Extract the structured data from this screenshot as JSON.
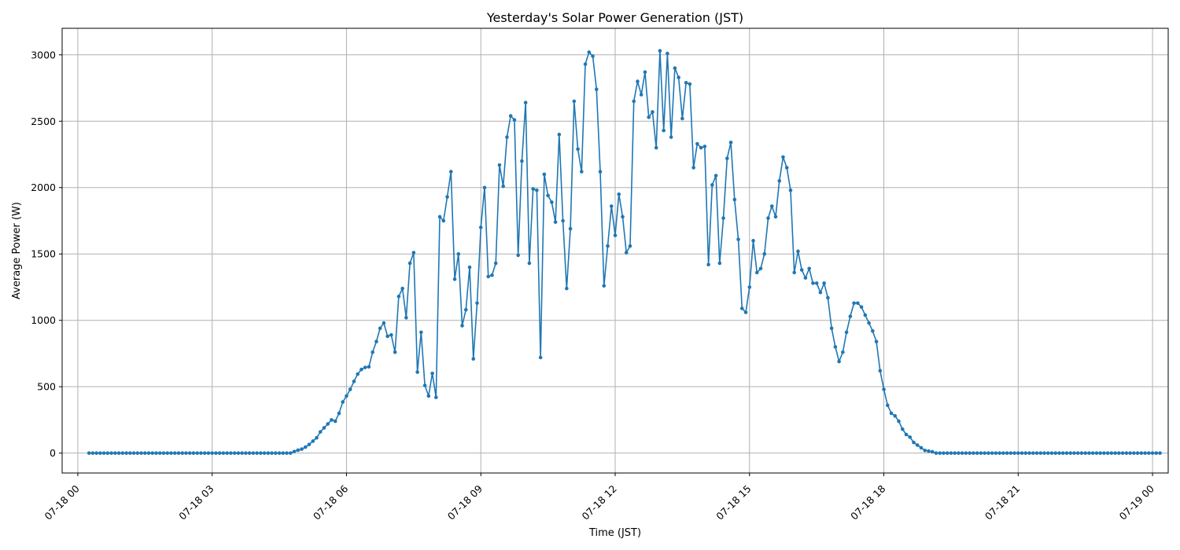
{
  "chart_data": {
    "type": "line",
    "title": "Yesterday's Solar Power Generation (JST)",
    "xlabel": "Time (JST)",
    "ylabel": "Average Power (W)",
    "x_start": "07-18 00:15",
    "x_step_minutes": 5,
    "xlim_hours": [
      -0.35,
      24.35
    ],
    "ylim": [
      -150,
      3200
    ],
    "yticks": [
      0,
      500,
      1000,
      1500,
      2000,
      2500,
      3000
    ],
    "xticks": [
      {
        "hour": 0,
        "label": "07-18 00"
      },
      {
        "hour": 3,
        "label": "07-18 03"
      },
      {
        "hour": 6,
        "label": "07-18 06"
      },
      {
        "hour": 9,
        "label": "07-18 09"
      },
      {
        "hour": 12,
        "label": "07-18 12"
      },
      {
        "hour": 15,
        "label": "07-18 15"
      },
      {
        "hour": 18,
        "label": "07-18 18"
      },
      {
        "hour": 21,
        "label": "07-18 21"
      },
      {
        "hour": 24,
        "label": "07-19 00"
      }
    ],
    "grid": true,
    "color": "#1f77b4",
    "values": [
      0,
      0,
      0,
      0,
      0,
      0,
      0,
      0,
      0,
      0,
      0,
      0,
      0,
      0,
      0,
      0,
      0,
      0,
      0,
      0,
      0,
      0,
      0,
      0,
      0,
      0,
      0,
      0,
      0,
      0,
      0,
      0,
      0,
      0,
      0,
      0,
      0,
      0,
      0,
      0,
      0,
      0,
      0,
      0,
      0,
      0,
      0,
      0,
      0,
      0,
      0,
      0,
      0,
      0,
      0,
      12,
      22,
      30,
      45,
      65,
      90,
      115,
      160,
      190,
      220,
      250,
      240,
      300,
      385,
      430,
      480,
      540,
      595,
      630,
      645,
      650,
      760,
      840,
      940,
      980,
      880,
      890,
      760,
      1180,
      1240,
      1020,
      1430,
      1510,
      610,
      910,
      510,
      430,
      600,
      420,
      1780,
      1750,
      1930,
      2120,
      1310,
      1500,
      960,
      1080,
      1400,
      710,
      1130,
      1700,
      2000,
      1330,
      1340,
      1430,
      2170,
      2010,
      2380,
      2540,
      2510,
      1490,
      2200,
      2640,
      1430,
      1990,
      1980,
      720,
      2100,
      1940,
      1890,
      1740,
      2400,
      1750,
      1240,
      1690,
      2650,
      2290,
      2120,
      2930,
      3020,
      2990,
      2740,
      2120,
      1260,
      1560,
      1860,
      1640,
      1950,
      1780,
      1510,
      1560,
      2650,
      2800,
      2700,
      2870,
      2530,
      2570,
      2300,
      3030,
      2430,
      3010,
      2380,
      2900,
      2830,
      2520,
      2790,
      2780,
      2150,
      2330,
      2300,
      2310,
      1420,
      2020,
      2090,
      1430,
      1770,
      2220,
      2340,
      1910,
      1610,
      1090,
      1060,
      1250,
      1600,
      1360,
      1390,
      1500,
      1770,
      1860,
      1780,
      2050,
      2230,
      2150,
      1980,
      1360,
      1520,
      1380,
      1320,
      1390,
      1280,
      1280,
      1210,
      1280,
      1170,
      940,
      800,
      690,
      760,
      910,
      1030,
      1130,
      1130,
      1100,
      1040,
      980,
      920,
      840,
      620,
      480,
      360,
      300,
      280,
      240,
      180,
      140,
      120,
      80,
      60,
      40,
      20,
      15,
      10,
      0,
      0,
      0,
      0,
      0,
      0,
      0,
      0,
      0,
      0,
      0,
      0,
      0,
      0,
      0,
      0,
      0,
      0,
      0,
      0,
      0,
      0,
      0,
      0,
      0,
      0,
      0,
      0,
      0,
      0,
      0,
      0,
      0,
      0,
      0,
      0,
      0,
      0,
      0,
      0,
      0,
      0,
      0,
      0,
      0,
      0,
      0,
      0,
      0,
      0,
      0,
      0,
      0,
      0,
      0,
      0,
      0,
      0,
      0,
      0,
      0
    ]
  }
}
